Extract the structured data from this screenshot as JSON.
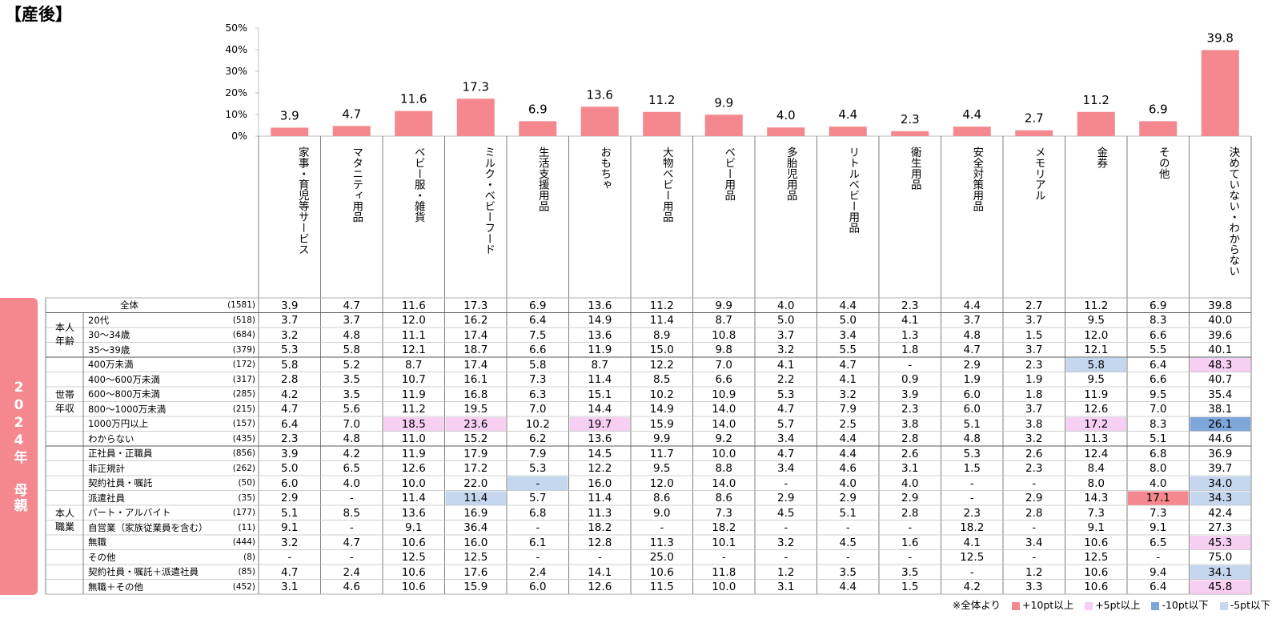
{
  "title": "【産後】",
  "side_label": "2024年 母親",
  "total_row_label": "全体",
  "colors": {
    "bar": "#f4888e",
    "plus10": "#f4888e",
    "plus5": "#f6cff2",
    "minus10": "#7ea6d8",
    "minus5": "#c5d7ee"
  },
  "legend": {
    "note": "※全体より",
    "plus10": "+10pt以上",
    "plus5": "+5pt以上",
    "minus10": "-10pt以下",
    "minus5": "-5pt以下"
  },
  "groups": [
    {
      "label": "本人年齢",
      "rows": [
        1,
        3
      ]
    },
    {
      "label": "世帯年収",
      "rows": [
        4,
        9
      ]
    },
    {
      "label": "本人職業",
      "rows": [
        10,
        19
      ]
    }
  ],
  "chart_data": {
    "type": "bar",
    "categories": [
      "家事・育児等サービス",
      "マタニティ用品",
      "ベビー服・雑貨",
      "ミルク・ベビーフード",
      "生活支援用品",
      "おもちゃ",
      "大物ベビー用品",
      "ベビー用品",
      "多胎児用品",
      "リトルベビー用品",
      "衛生用品",
      "安全対策用品",
      "メモリアル",
      "金券",
      "その他",
      "決めていない・わからない"
    ],
    "values": [
      3.9,
      4.7,
      11.6,
      17.3,
      6.9,
      13.6,
      11.2,
      9.9,
      4.0,
      4.4,
      2.3,
      4.4,
      2.7,
      11.2,
      6.9,
      39.8
    ],
    "value_labels": [
      "3.9",
      "4.7",
      "11.6",
      "17.3",
      "6.9",
      "13.6",
      "11.2",
      "9.9",
      "4.0",
      "4.4",
      "2.3",
      "4.4",
      "2.7",
      "11.2",
      "6.9",
      "39.8"
    ],
    "yticks": [
      "0%",
      "10%",
      "20%",
      "30%",
      "40%",
      "50%"
    ],
    "ylim": [
      0,
      50
    ],
    "table_rows": [
      {
        "label": "全体",
        "n": "(1581)",
        "values": [
          "3.9",
          "4.7",
          "11.6",
          "17.3",
          "6.9",
          "13.6",
          "11.2",
          "9.9",
          "4.0",
          "4.4",
          "2.3",
          "4.4",
          "2.7",
          "11.2",
          "6.9",
          "39.8"
        ],
        "highlights": {}
      },
      {
        "label": "20代",
        "n": "(518)",
        "values": [
          "3.7",
          "3.7",
          "12.0",
          "16.2",
          "6.4",
          "14.9",
          "11.4",
          "8.7",
          "5.0",
          "5.0",
          "4.1",
          "3.7",
          "3.7",
          "9.5",
          "8.3",
          "40.0"
        ],
        "highlights": {}
      },
      {
        "label": "30～34歳",
        "n": "(684)",
        "values": [
          "3.2",
          "4.8",
          "11.1",
          "17.4",
          "7.5",
          "13.6",
          "8.9",
          "10.8",
          "3.7",
          "3.4",
          "1.3",
          "4.8",
          "1.5",
          "12.0",
          "6.6",
          "39.6"
        ],
        "highlights": {}
      },
      {
        "label": "35～39歳",
        "n": "(379)",
        "values": [
          "5.3",
          "5.8",
          "12.1",
          "18.7",
          "6.6",
          "11.9",
          "15.0",
          "9.8",
          "3.2",
          "5.5",
          "1.8",
          "4.7",
          "3.7",
          "12.1",
          "5.5",
          "40.1"
        ],
        "highlights": {}
      },
      {
        "label": "400万未満",
        "n": "(172)",
        "values": [
          "5.8",
          "5.2",
          "8.7",
          "17.4",
          "5.8",
          "8.7",
          "12.2",
          "7.0",
          "4.1",
          "4.7",
          "-",
          "2.9",
          "2.3",
          "5.8",
          "6.4",
          "48.3"
        ],
        "highlights": {
          "13": "minus5",
          "15": "plus5"
        }
      },
      {
        "label": "400～600万未満",
        "n": "(317)",
        "values": [
          "2.8",
          "3.5",
          "10.7",
          "16.1",
          "7.3",
          "11.4",
          "8.5",
          "6.6",
          "2.2",
          "4.1",
          "0.9",
          "1.9",
          "1.9",
          "9.5",
          "6.6",
          "40.7"
        ],
        "highlights": {}
      },
      {
        "label": "600～800万未満",
        "n": "(285)",
        "values": [
          "4.2",
          "3.5",
          "11.9",
          "16.8",
          "6.3",
          "15.1",
          "10.2",
          "10.9",
          "5.3",
          "3.2",
          "3.9",
          "6.0",
          "1.8",
          "11.9",
          "9.5",
          "35.4"
        ],
        "highlights": {}
      },
      {
        "label": "800～1000万未満",
        "n": "(215)",
        "values": [
          "4.7",
          "5.6",
          "11.2",
          "19.5",
          "7.0",
          "14.4",
          "14.9",
          "14.0",
          "4.7",
          "7.9",
          "2.3",
          "6.0",
          "3.7",
          "12.6",
          "7.0",
          "38.1"
        ],
        "highlights": {}
      },
      {
        "label": "1000万円以上",
        "n": "(157)",
        "values": [
          "6.4",
          "7.0",
          "18.5",
          "23.6",
          "10.2",
          "19.7",
          "15.9",
          "14.0",
          "5.7",
          "2.5",
          "3.8",
          "5.1",
          "3.8",
          "17.2",
          "8.3",
          "26.1"
        ],
        "highlights": {
          "2": "plus5",
          "3": "plus5",
          "5": "plus5",
          "13": "plus5",
          "15": "minus10"
        }
      },
      {
        "label": "わからない",
        "n": "(435)",
        "values": [
          "2.3",
          "4.8",
          "11.0",
          "15.2",
          "6.2",
          "13.6",
          "9.9",
          "9.2",
          "3.4",
          "4.4",
          "2.8",
          "4.8",
          "3.2",
          "11.3",
          "5.1",
          "44.6"
        ],
        "highlights": {}
      },
      {
        "label": "正社員・正職員",
        "n": "(856)",
        "values": [
          "3.9",
          "4.2",
          "11.9",
          "17.9",
          "7.9",
          "14.5",
          "11.7",
          "10.0",
          "4.7",
          "4.4",
          "2.6",
          "5.3",
          "2.6",
          "12.4",
          "6.8",
          "36.9"
        ],
        "highlights": {}
      },
      {
        "label": "非正規計",
        "n": "(262)",
        "values": [
          "5.0",
          "6.5",
          "12.6",
          "17.2",
          "5.3",
          "12.2",
          "9.5",
          "8.8",
          "3.4",
          "4.6",
          "3.1",
          "1.5",
          "2.3",
          "8.4",
          "8.0",
          "39.7"
        ],
        "highlights": {}
      },
      {
        "label": "契約社員・嘱託",
        "n": "(50)",
        "values": [
          "6.0",
          "4.0",
          "10.0",
          "22.0",
          "-",
          "16.0",
          "12.0",
          "14.0",
          "-",
          "4.0",
          "4.0",
          "-",
          "-",
          "8.0",
          "4.0",
          "34.0"
        ],
        "highlights": {
          "4": "minus5",
          "15": "minus5"
        }
      },
      {
        "label": "派遣社員",
        "n": "(35)",
        "values": [
          "2.9",
          "-",
          "11.4",
          "11.4",
          "5.7",
          "11.4",
          "8.6",
          "8.6",
          "2.9",
          "2.9",
          "2.9",
          "-",
          "2.9",
          "14.3",
          "17.1",
          "34.3"
        ],
        "highlights": {
          "3": "minus5",
          "14": "plus10",
          "15": "minus5"
        }
      },
      {
        "label": "パート・アルバイト",
        "n": "(177)",
        "values": [
          "5.1",
          "8.5",
          "13.6",
          "16.9",
          "6.8",
          "11.3",
          "9.0",
          "7.3",
          "4.5",
          "5.1",
          "2.8",
          "2.3",
          "2.8",
          "7.3",
          "7.3",
          "42.4"
        ],
        "highlights": {}
      },
      {
        "label": "自営業（家族従業員を含む）",
        "n": "(11)",
        "values": [
          "9.1",
          "-",
          "9.1",
          "36.4",
          "-",
          "18.2",
          "-",
          "18.2",
          "-",
          "-",
          "-",
          "18.2",
          "-",
          "9.1",
          "9.1",
          "27.3"
        ],
        "highlights": {}
      },
      {
        "label": "無職",
        "n": "(444)",
        "values": [
          "3.2",
          "4.7",
          "10.6",
          "16.0",
          "6.1",
          "12.8",
          "11.3",
          "10.1",
          "3.2",
          "4.5",
          "1.6",
          "4.1",
          "3.4",
          "10.6",
          "6.5",
          "45.3"
        ],
        "highlights": {
          "15": "plus5"
        }
      },
      {
        "label": "その他",
        "n": "(8)",
        "values": [
          "-",
          "-",
          "12.5",
          "12.5",
          "-",
          "-",
          "25.0",
          "-",
          "-",
          "-",
          "-",
          "12.5",
          "-",
          "12.5",
          "-",
          "75.0"
        ],
        "highlights": {}
      },
      {
        "label": "契約社員・嘱託＋派遣社員",
        "n": "(85)",
        "values": [
          "4.7",
          "2.4",
          "10.6",
          "17.6",
          "2.4",
          "14.1",
          "10.6",
          "11.8",
          "1.2",
          "3.5",
          "3.5",
          "-",
          "1.2",
          "10.6",
          "9.4",
          "34.1"
        ],
        "highlights": {
          "15": "minus5"
        }
      },
      {
        "label": "無職＋その他",
        "n": "(452)",
        "values": [
          "3.1",
          "4.6",
          "10.6",
          "15.9",
          "6.0",
          "12.6",
          "11.5",
          "10.0",
          "3.1",
          "4.4",
          "1.5",
          "4.2",
          "3.3",
          "10.6",
          "6.4",
          "45.8"
        ],
        "highlights": {
          "15": "plus5"
        }
      }
    ]
  }
}
